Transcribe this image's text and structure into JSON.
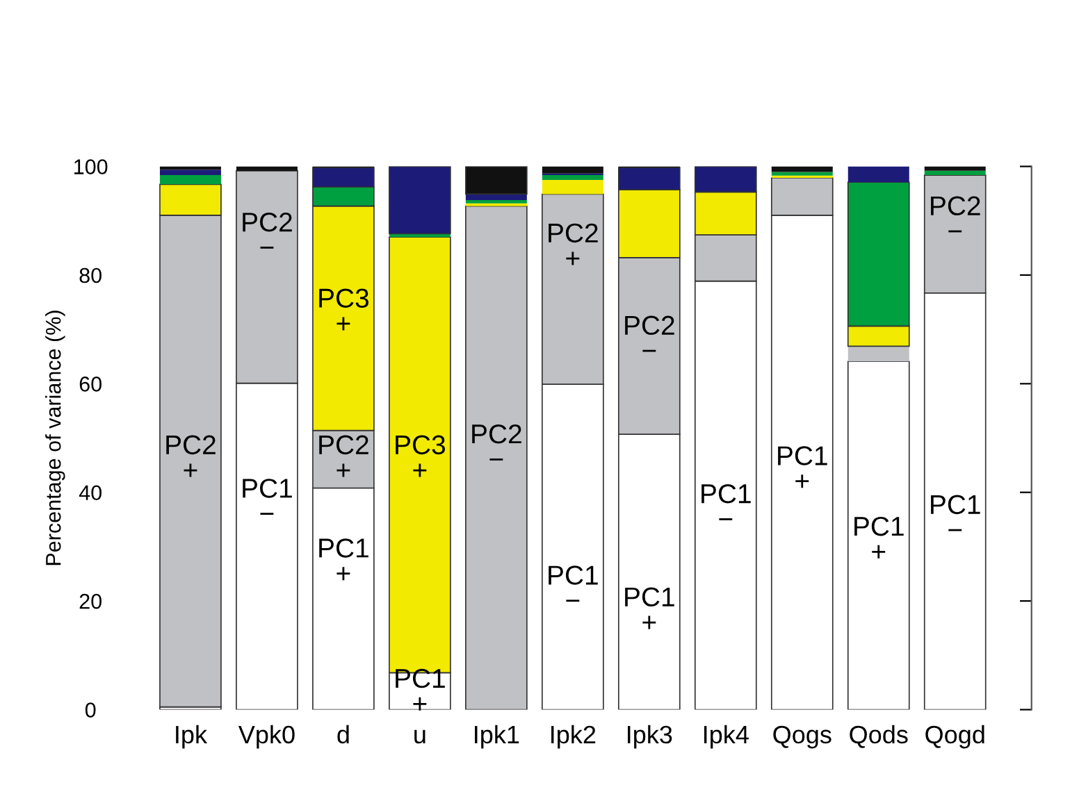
{
  "chart_data": {
    "type": "bar",
    "stacked": true,
    "ylabel": "Percentage of variance (%)",
    "categories": [
      "Ipk",
      "Vpk0",
      "d",
      "u",
      "Ipk1",
      "Ipk2",
      "Ipk3",
      "Ipk4",
      "Qogs",
      "Qods",
      "Qogd"
    ],
    "series": [
      {
        "color": "#ffffff",
        "values": [
          0.5,
          60.1,
          40.8,
          6.8,
          0,
          59.9,
          50.7,
          78.9,
          91.0,
          64.1,
          76.7
        ]
      },
      {
        "color": "#c0c1c5",
        "values": [
          90.5,
          39.1,
          10.6,
          0,
          92.7,
          35.0,
          32.5,
          8.5,
          6.9,
          2.8,
          21.7
        ]
      },
      {
        "color": "#f2ea00",
        "values": [
          5.7,
          0,
          41.3,
          80.2,
          0.5,
          2.6,
          12.5,
          7.9,
          0.4,
          3.7,
          0
        ]
      },
      {
        "color": "#00a040",
        "values": [
          1.7,
          0,
          3.5,
          0.6,
          0.6,
          0.9,
          0,
          0,
          0.7,
          26.5,
          0.8
        ]
      },
      {
        "color": "#1c1c78",
        "values": [
          1.0,
          0,
          3.6,
          12.4,
          1.1,
          0.3,
          4.1,
          4.7,
          0,
          2.9,
          0
        ]
      },
      {
        "color": "#111111",
        "values": [
          0.6,
          0.8,
          0.2,
          0,
          5.1,
          1.3,
          0.2,
          0,
          1.0,
          0,
          0.8
        ]
      }
    ],
    "ylim": [
      0,
      100
    ],
    "yticks": [
      0,
      20,
      40,
      60,
      80,
      100
    ],
    "grid": false,
    "legend": false,
    "annotations": [
      "PC2\n+",
      "PC2\n−",
      "PC1\n−",
      "PC3\n+",
      "PC2\n+",
      "PC1\n+",
      "PC3\n+",
      "PC1\n+",
      "PC2\n−",
      "PC2\n+",
      "PC1\n−",
      "PC2\n−",
      "PC1\n+",
      "PC1\n−",
      "PC1\n+",
      "PC1\n+",
      "PC2\n−",
      "PC1\n−"
    ]
  }
}
